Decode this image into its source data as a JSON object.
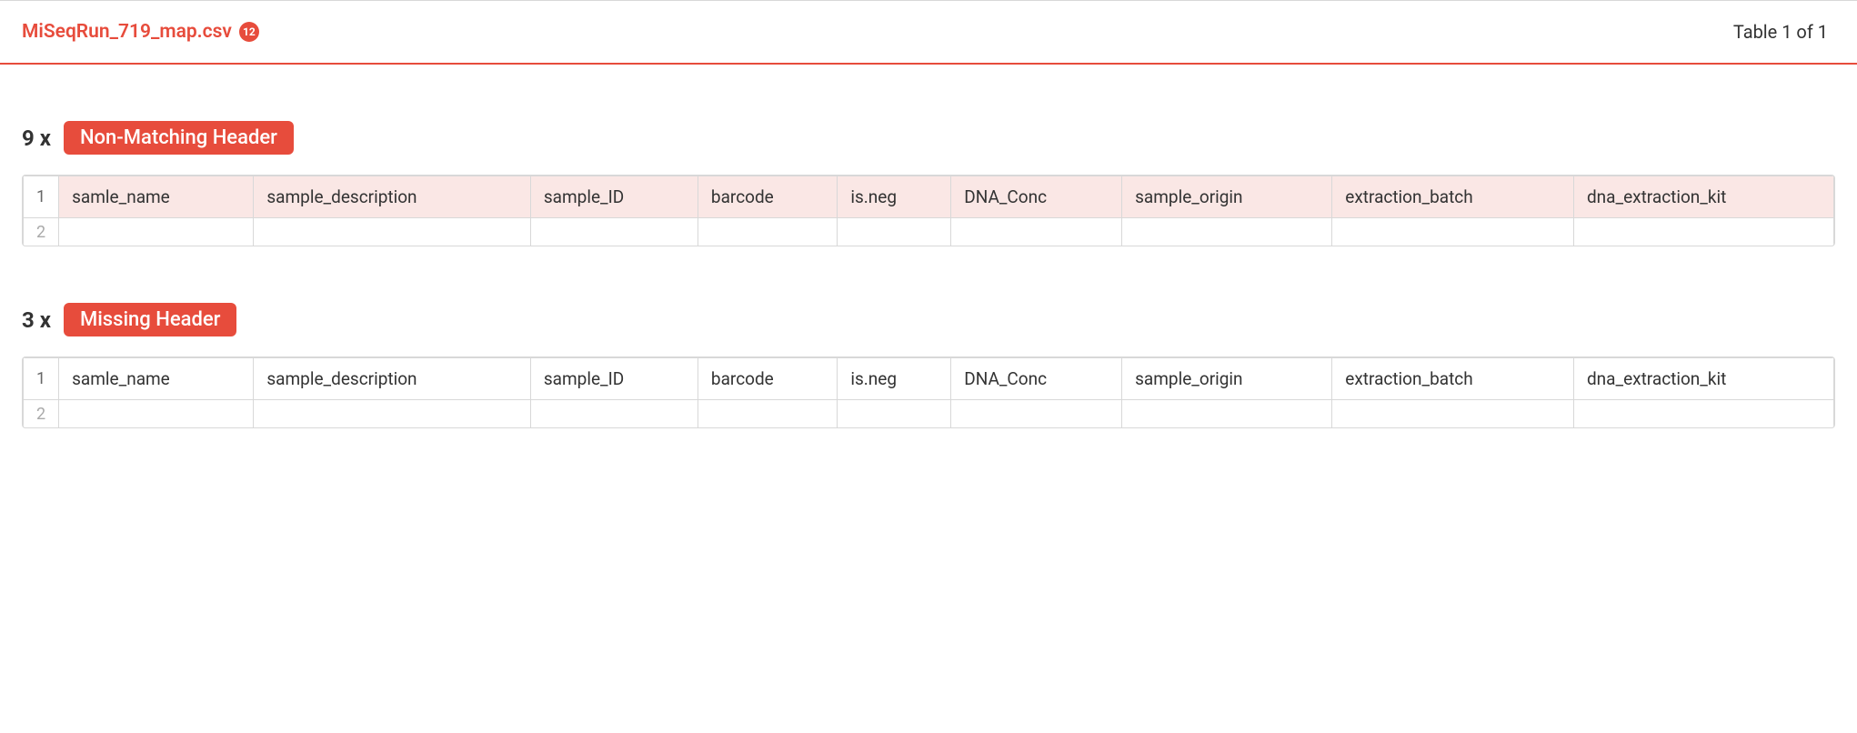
{
  "header": {
    "filename": "MiSeqRun_719_map.csv",
    "badge_count": "12",
    "pager_text": "Table 1 of 1"
  },
  "issues": [
    {
      "count_label": "9 x",
      "pill_label": "Non-Matching Header",
      "highlight": true,
      "row1_num": "1",
      "row2_num": "2",
      "columns": [
        "samle_name",
        "sample_description",
        "sample_ID",
        "barcode",
        "is.neg",
        "DNA_Conc",
        "sample_origin",
        "extraction_batch",
        "dna_extraction_kit"
      ]
    },
    {
      "count_label": "3 x",
      "pill_label": "Missing Header",
      "highlight": false,
      "row1_num": "1",
      "row2_num": "2",
      "columns": [
        "samle_name",
        "sample_description",
        "sample_ID",
        "barcode",
        "is.neg",
        "DNA_Conc",
        "sample_origin",
        "extraction_batch",
        "dna_extraction_kit"
      ]
    }
  ],
  "colors": {
    "accent": "#e74c3c",
    "highlight_bg": "#fae7e5",
    "border": "#d8d8d8"
  }
}
